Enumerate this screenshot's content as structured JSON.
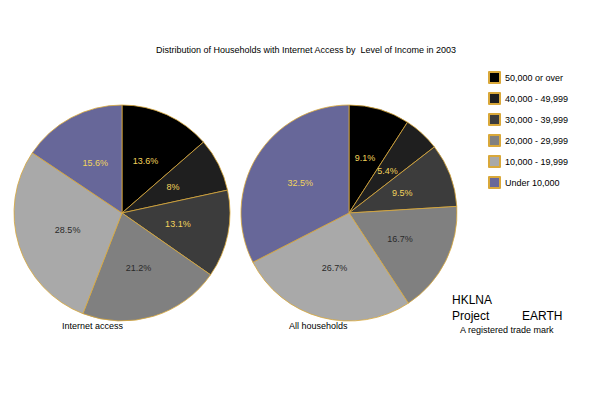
{
  "chart_data": {
    "type": "pie",
    "title": "Distribution of Households with Internet Access by  Level of Income in 2003",
    "categories": [
      "50,000 or over",
      "40,000 - 49,999",
      "30,000 - 39,999",
      "20,000 - 29,999",
      "10,000 - 19,999",
      "Under 10,000"
    ],
    "colors": [
      "#000000",
      "#1f1f1f",
      "#3c3c3c",
      "#808080",
      "#a9a9a9",
      "#676799"
    ],
    "series": [
      {
        "name": "Internet access",
        "values": [
          13.6,
          8,
          13.1,
          21.2,
          28.5,
          15.6
        ],
        "value_labels": [
          "13.6%",
          "8%",
          "13.1%",
          "21.2%",
          "28.5%",
          "15.6%"
        ]
      },
      {
        "name": "All households",
        "values": [
          9.1,
          5.4,
          9.5,
          16.7,
          26.7,
          32.5
        ],
        "value_labels": [
          "9.1%",
          "5.4%",
          "9.5%",
          "16.7%",
          "26.7%",
          "32.5%"
        ]
      }
    ],
    "legend": "top-right",
    "data_labels": true,
    "annotations": [
      "HKLNA",
      "Project",
      "EARTH",
      "A registered trade mark"
    ]
  }
}
